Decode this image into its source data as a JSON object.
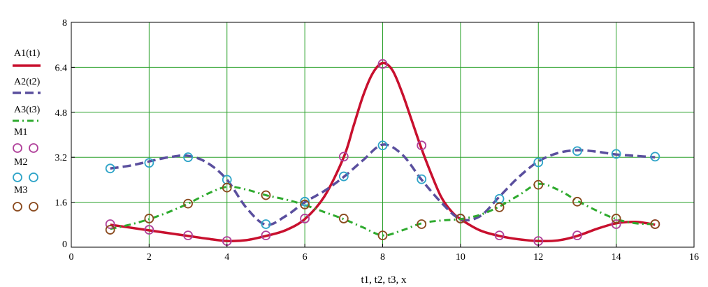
{
  "chart_data": {
    "type": "line",
    "xlabel": "t1, t2, t3, x",
    "ylabel": "",
    "xlim": [
      0,
      16
    ],
    "ylim": [
      0,
      8
    ],
    "x_ticks": [
      "0",
      "2",
      "4",
      "6",
      "8",
      "10",
      "12",
      "14",
      "16"
    ],
    "y_ticks": [
      "0",
      "1.6",
      "3.2",
      "4.8",
      "6.4",
      "8"
    ],
    "grid": true,
    "grid_color": "#2aa02a",
    "legend_position": "left",
    "series": [
      {
        "name": "A1(t1)",
        "kind": "line",
        "style": "solid",
        "color": "#c8102e",
        "x": [
          1,
          1.5,
          2,
          2.5,
          3,
          3.5,
          4,
          4.5,
          5,
          5.5,
          6,
          6.5,
          7,
          7.25,
          7.5,
          7.75,
          8,
          8.25,
          8.5,
          8.75,
          9,
          9.25,
          9.5,
          9.75,
          10,
          10.5,
          11,
          11.5,
          12,
          12.5,
          13,
          13.5,
          14,
          14.5,
          15
        ],
        "y": [
          0.8,
          0.7,
          0.6,
          0.5,
          0.4,
          0.3,
          0.22,
          0.25,
          0.4,
          0.6,
          1.0,
          1.8,
          3.2,
          4.3,
          5.4,
          6.2,
          6.55,
          6.3,
          5.5,
          4.5,
          3.5,
          2.6,
          1.8,
          1.3,
          1.0,
          0.6,
          0.4,
          0.28,
          0.22,
          0.24,
          0.4,
          0.65,
          0.85,
          0.9,
          0.8
        ]
      },
      {
        "name": "A2(t2)",
        "kind": "line",
        "style": "dash",
        "color": "#5a4f9e",
        "x": [
          1,
          1.5,
          2,
          2.5,
          3,
          3.5,
          4,
          4.5,
          5,
          5.5,
          6,
          6.5,
          7,
          7.5,
          8,
          8.5,
          9,
          9.5,
          10,
          10.5,
          11,
          11.5,
          12,
          12.5,
          13,
          13.5,
          14,
          14.5,
          15
        ],
        "y": [
          2.8,
          2.9,
          3.05,
          3.2,
          3.25,
          3.0,
          2.4,
          1.4,
          0.8,
          1.1,
          1.6,
          2.0,
          2.5,
          3.1,
          3.65,
          3.3,
          2.4,
          1.6,
          1.0,
          1.1,
          1.8,
          2.5,
          3.05,
          3.35,
          3.45,
          3.4,
          3.3,
          3.25,
          3.2
        ]
      },
      {
        "name": "A3(t3)",
        "kind": "line",
        "style": "dashdot",
        "color": "#2eaa2e",
        "x": [
          1,
          1.5,
          2,
          2.5,
          3,
          3.5,
          4,
          4.5,
          5,
          5.5,
          6,
          6.5,
          7,
          7.5,
          8,
          8.5,
          9,
          9.5,
          10,
          10.5,
          11,
          11.5,
          12,
          12.5,
          13,
          13.5,
          14,
          14.5,
          15
        ],
        "y": [
          0.65,
          0.8,
          1.0,
          1.25,
          1.55,
          1.9,
          2.15,
          2.05,
          1.85,
          1.7,
          1.5,
          1.25,
          1.0,
          0.7,
          0.42,
          0.6,
          0.85,
          0.95,
          1.0,
          1.15,
          1.45,
          1.85,
          2.25,
          2.05,
          1.65,
          1.3,
          1.0,
          0.85,
          0.82
        ]
      },
      {
        "name": "M1",
        "kind": "marker",
        "color": "#b0409a",
        "x": [
          1,
          2,
          3,
          4,
          5,
          6,
          7,
          8,
          9,
          10,
          11,
          12,
          13,
          14,
          15
        ],
        "y": [
          0.82,
          0.62,
          0.42,
          0.22,
          0.42,
          1.02,
          3.22,
          6.52,
          3.62,
          1.02,
          0.42,
          0.22,
          0.42,
          0.82,
          0.82
        ]
      },
      {
        "name": "M2",
        "kind": "marker",
        "color": "#2fa4c8",
        "x": [
          1,
          2,
          3,
          4,
          5,
          6,
          7,
          8,
          9,
          10,
          11,
          12,
          13,
          14,
          15
        ],
        "y": [
          2.8,
          3.0,
          3.2,
          2.4,
          0.82,
          1.62,
          2.52,
          3.62,
          2.42,
          1.02,
          1.72,
          3.02,
          3.42,
          3.32,
          3.22
        ]
      },
      {
        "name": "M3",
        "kind": "marker",
        "color": "#8a4a1e",
        "x": [
          1,
          2,
          3,
          4,
          5,
          6,
          7,
          8,
          9,
          10,
          11,
          12,
          13,
          14,
          15
        ],
        "y": [
          0.62,
          1.02,
          1.55,
          2.12,
          1.85,
          1.52,
          1.02,
          0.42,
          0.82,
          1.02,
          1.42,
          2.22,
          1.62,
          1.02,
          0.82
        ]
      }
    ]
  }
}
